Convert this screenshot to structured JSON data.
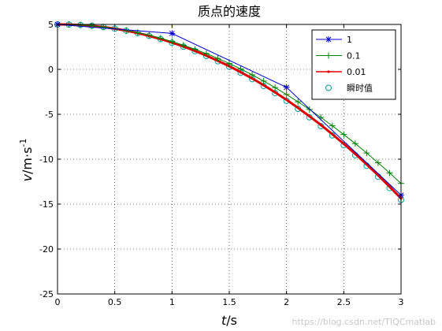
{
  "chart_data": {
    "type": "line",
    "title": "质点的速度",
    "xlabel": {
      "var": "t",
      "unit": "/s"
    },
    "ylabel": {
      "var": "v",
      "unit": "/m·s",
      "exp": "-1"
    },
    "xlim": [
      0,
      3
    ],
    "ylim": [
      -25,
      5
    ],
    "xticks": [
      "0",
      "0.5",
      "1",
      "1.5",
      "2",
      "2.5",
      "3"
    ],
    "yticks": [
      "5",
      "0",
      "-5",
      "-10",
      "-15",
      "-20",
      "-25"
    ],
    "grid": true,
    "legend_position": "top-right",
    "series": [
      {
        "name": "1",
        "color": "#0000cc",
        "marker": "star",
        "x": [
          0,
          1,
          2,
          3
        ],
        "y": [
          5,
          4,
          -2,
          -14
        ]
      },
      {
        "name": "0.1",
        "color": "#008000",
        "marker": "plus",
        "x": [
          0,
          0.1,
          0.2,
          0.3,
          0.4,
          0.5,
          0.6,
          0.7,
          0.8,
          0.9,
          1.0,
          1.1,
          1.2,
          1.3,
          1.4,
          1.5,
          1.6,
          1.7,
          1.8,
          1.9,
          2.0,
          2.1,
          2.2,
          2.3,
          2.4,
          2.5,
          2.6,
          2.7,
          2.8,
          2.9,
          3.0
        ],
        "y": [
          5,
          4.99,
          4.94,
          4.85,
          4.72,
          4.55,
          4.34,
          4.09,
          3.8,
          3.47,
          3.1,
          2.69,
          2.24,
          1.75,
          1.22,
          0.65,
          0.04,
          -0.61,
          -1.3,
          -2.03,
          -2.8,
          -3.61,
          -4.46,
          -5.35,
          -6.28,
          -7.25,
          -8.26,
          -9.31,
          -10.4,
          -11.53,
          -12.7
        ]
      },
      {
        "name": "0.01",
        "color": "#dd0000",
        "marker": "dot",
        "x": [
          0,
          0.1,
          0.2,
          0.3,
          0.4,
          0.5,
          0.6,
          0.7,
          0.8,
          0.9,
          1.0,
          1.1,
          1.2,
          1.3,
          1.4,
          1.5,
          1.6,
          1.7,
          1.8,
          1.9,
          2.0,
          2.1,
          2.2,
          2.3,
          2.4,
          2.5,
          2.6,
          2.7,
          2.8,
          2.9,
          3.0
        ],
        "y": [
          5,
          4.99,
          4.94,
          4.85,
          4.71,
          4.53,
          4.31,
          4.04,
          3.73,
          3.38,
          2.98,
          2.54,
          2.06,
          1.53,
          0.96,
          0.35,
          -0.31,
          -1.01,
          -1.76,
          -2.55,
          -3.39,
          -4.28,
          -5.21,
          -6.19,
          -7.22,
          -8.29,
          -9.41,
          -10.58,
          -11.79,
          -13.06,
          -14.37
        ]
      },
      {
        "name": "瞬时值",
        "color": "#00a0a0",
        "marker": "circle",
        "x": [
          0,
          0.1,
          0.2,
          0.3,
          0.4,
          0.5,
          0.6,
          0.7,
          0.8,
          0.9,
          1.0,
          1.1,
          1.2,
          1.3,
          1.4,
          1.5,
          1.6,
          1.7,
          1.8,
          1.9,
          2.0,
          2.1,
          2.2,
          2.3,
          2.4,
          2.5,
          2.6,
          2.7,
          2.8,
          2.9,
          3.0
        ],
        "y": [
          5,
          4.99,
          4.94,
          4.85,
          4.71,
          4.53,
          4.3,
          4.04,
          3.72,
          3.37,
          2.96,
          2.52,
          2.03,
          1.49,
          0.91,
          0.29,
          -0.38,
          -1.09,
          -1.85,
          -2.65,
          -3.5,
          -4.39,
          -5.33,
          -6.32,
          -7.35,
          -8.43,
          -9.56,
          -10.73,
          -11.95,
          -13.21,
          -14.52
        ]
      }
    ]
  },
  "watermark": "https://blog.csdn.net/TIQCmatlab"
}
